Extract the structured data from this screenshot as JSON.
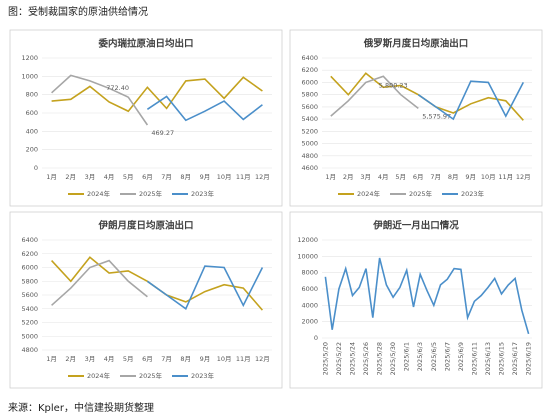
{
  "header": {
    "title": "图：受制裁国家的原油供给情况"
  },
  "source": "来源：Kpler，中信建投期货整理",
  "chart_data": [
    {
      "type": "line",
      "title": "委内瑞拉原油日均出口",
      "categories": [
        "1月",
        "2月",
        "3月",
        "4月",
        "5月",
        "6月",
        "7月",
        "8月",
        "9月",
        "10月",
        "11月",
        "12月"
      ],
      "series": [
        {
          "name": "2024年",
          "color": "#c4a21e",
          "values": [
            730,
            750,
            890,
            720,
            620,
            880,
            650,
            950,
            970,
            760,
            990,
            840
          ]
        },
        {
          "name": "2025年",
          "color": "#a6a6a6",
          "values": [
            820,
            1010,
            950,
            870,
            772.4,
            469.27,
            null,
            null,
            null,
            null,
            null,
            null
          ],
          "value_labels": [
            null,
            null,
            null,
            null,
            "772.40",
            "469.27",
            null,
            null,
            null,
            null,
            null,
            null
          ]
        },
        {
          "name": "2023年",
          "color": "#4b8fca",
          "values": [
            null,
            null,
            null,
            null,
            null,
            640,
            780,
            520,
            620,
            730,
            530,
            690
          ]
        }
      ],
      "ylim": [
        0,
        1200
      ],
      "yticks": [
        0,
        200,
        400,
        600,
        800,
        1000,
        1200
      ],
      "legend": "bottom"
    },
    {
      "type": "line",
      "title": "俄罗斯月度日均原油出口",
      "categories": [
        "1月",
        "2月",
        "3月",
        "4月",
        "5月",
        "6月",
        "7月",
        "8月",
        "9月",
        "10月",
        "11月",
        "12月"
      ],
      "series": [
        {
          "name": "2024年",
          "color": "#c4a21e",
          "values": [
            6100,
            5800,
            6150,
            5920,
            5950,
            5800,
            5600,
            5500,
            5650,
            5750,
            5700,
            5380
          ]
        },
        {
          "name": "2025年",
          "color": "#a6a6a6",
          "values": [
            5450,
            5700,
            6000,
            6100,
            5800.23,
            5575.97,
            null,
            null,
            null,
            null,
            null,
            null
          ],
          "value_labels": [
            null,
            null,
            null,
            null,
            "5,800.23",
            "5,575.97",
            null,
            null,
            null,
            null,
            null,
            null
          ]
        },
        {
          "name": "2023年",
          "color": "#4b8fca",
          "values": [
            null,
            null,
            null,
            null,
            null,
            5800,
            5600,
            5400,
            6020,
            6000,
            5450,
            6000
          ]
        }
      ],
      "ylim": [
        4600,
        6400
      ],
      "yticks": [
        4600,
        4800,
        5000,
        5200,
        5400,
        5600,
        5800,
        6000,
        6200,
        6400
      ],
      "legend": "bottom"
    },
    {
      "type": "line",
      "title": "伊朗月度日均原油出口",
      "categories": [
        "1月",
        "2月",
        "3月",
        "4月",
        "5月",
        "6月",
        "7月",
        "8月",
        "9月",
        "10月",
        "11月",
        "12月"
      ],
      "series": [
        {
          "name": "2024年",
          "color": "#c4a21e",
          "values": [
            6100,
            5800,
            6150,
            5920,
            5950,
            5800,
            5600,
            5500,
            5650,
            5750,
            5700,
            5380
          ]
        },
        {
          "name": "2025年",
          "color": "#a6a6a6",
          "values": [
            5450,
            5700,
            6000,
            6100,
            5800,
            5575,
            null,
            null,
            null,
            null,
            null,
            null
          ]
        },
        {
          "name": "2023年",
          "color": "#4b8fca",
          "values": [
            null,
            null,
            null,
            null,
            null,
            5800,
            5600,
            5400,
            6020,
            6000,
            5450,
            6000
          ]
        }
      ],
      "ylim": [
        4800,
        6400
      ],
      "yticks": [
        4800,
        5000,
        5200,
        5400,
        5600,
        5800,
        6000,
        6200,
        6400
      ],
      "legend": "bottom"
    },
    {
      "type": "line",
      "title": "伊朗近一月出口情况",
      "categories": [
        "2025/5/20",
        null,
        "2025/5/22",
        null,
        "2025/5/24",
        null,
        "2025/5/26",
        null,
        "2025/5/28",
        null,
        "2025/5/30",
        null,
        "2025/6/1",
        null,
        "2025/6/3",
        null,
        "2025/6/5",
        null,
        "2025/6/7",
        null,
        "2025/6/9",
        null,
        "2025/6/11",
        null,
        "2025/6/13",
        null,
        "2025/6/15",
        null,
        "2025/6/17",
        null,
        "2025/6/19"
      ],
      "series": [
        {
          "color": "#4b8fca",
          "values": [
            7500,
            1000,
            6000,
            8500,
            5200,
            6200,
            8500,
            2500,
            9800,
            6500,
            5000,
            6200,
            8300,
            3800,
            7800,
            5800,
            4000,
            6500,
            7200,
            8500,
            8400,
            2500,
            4500,
            5200,
            6200,
            7300,
            5400,
            6500,
            7300,
            3400,
            500
          ]
        }
      ],
      "ylim": [
        0,
        12000
      ],
      "yticks": [
        0,
        2000,
        4000,
        6000,
        8000,
        10000,
        12000
      ],
      "rotate_x": true
    }
  ]
}
